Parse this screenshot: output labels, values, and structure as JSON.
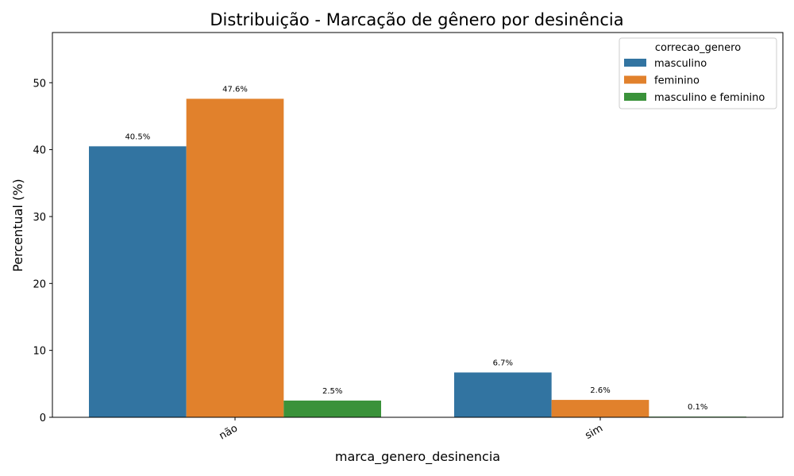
{
  "chart_data": {
    "type": "bar",
    "title": "Distribuição - Marcação de gênero por desinência",
    "xlabel": "marca_genero_desinencia",
    "ylabel": "Percentual (%)",
    "categories": [
      "não",
      "sim"
    ],
    "ylim": [
      0,
      57.5
    ],
    "yticks": [
      0,
      10,
      20,
      30,
      40,
      50
    ],
    "grid": false,
    "legend": {
      "title": "correcao_genero",
      "placement": "top-right"
    },
    "series": [
      {
        "name": "masculino",
        "color": "#3274a1",
        "values": [
          40.5,
          6.7
        ],
        "labels": [
          "40.5%",
          "6.7%"
        ]
      },
      {
        "name": "feminino",
        "color": "#e1812c",
        "values": [
          47.6,
          2.6
        ],
        "labels": [
          "47.6%",
          "2.6%"
        ]
      },
      {
        "name": "masculino e feminino",
        "color": "#3a923a",
        "values": [
          2.5,
          0.1
        ],
        "labels": [
          "2.5%",
          "0.1%"
        ]
      }
    ]
  }
}
